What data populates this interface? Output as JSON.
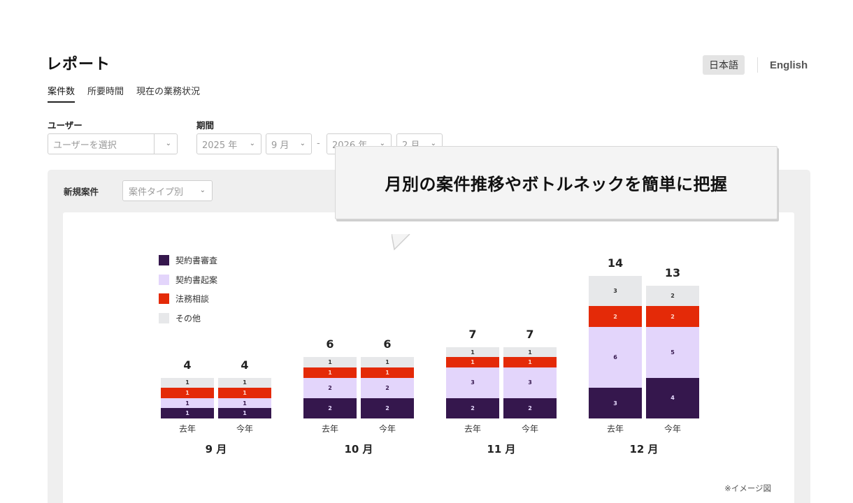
{
  "page": {
    "title": "レポート"
  },
  "language": {
    "options": [
      "日本語",
      "English"
    ],
    "active": "日本語"
  },
  "tabs": [
    {
      "label": "案件数",
      "active": true
    },
    {
      "label": "所要時間",
      "active": false
    },
    {
      "label": "現在の業務状況",
      "active": false
    }
  ],
  "filters": {
    "user": {
      "label": "ユーザー",
      "placeholder": "ユーザーを選択"
    },
    "period": {
      "label": "期間",
      "start_year": "2025 年",
      "start_month": "9 月",
      "separator": "-",
      "end_year": "2026 年",
      "end_month": "2 月"
    }
  },
  "panel": {
    "label": "新規案件",
    "group_by": "案件タイプ別",
    "note": "※イメージ図"
  },
  "callout": {
    "text": "月別の案件推移やボトルネックを簡単に把握"
  },
  "icons": {
    "caret": "chevron-down-icon"
  },
  "colors": {
    "review": "#35174d",
    "drafting": "#e3d5fb",
    "legal_consult": "#e42a08",
    "other": "#e7e8ea"
  },
  "chart_data": {
    "type": "bar",
    "stacked": true,
    "title": "新規案件（案件タイプ別）",
    "categories": [
      "9 月",
      "10 月",
      "11 月",
      "12 月"
    ],
    "sub_categories": [
      "去年",
      "今年"
    ],
    "legend": [
      "契約書審査",
      "契約書起案",
      "法務相談",
      "その他"
    ],
    "legend_position": "top-left",
    "grid": false,
    "series": [
      {
        "name": "契約書審査",
        "color": "#35174d",
        "values": {
          "去年": [
            1,
            2,
            2,
            3
          ],
          "今年": [
            1,
            2,
            2,
            4
          ]
        }
      },
      {
        "name": "契約書起案",
        "color": "#e3d5fb",
        "values": {
          "去年": [
            1,
            2,
            3,
            6
          ],
          "今年": [
            1,
            2,
            3,
            5
          ]
        }
      },
      {
        "name": "法務相談",
        "color": "#e42a08",
        "values": {
          "去年": [
            1,
            1,
            1,
            2
          ],
          "今年": [
            1,
            1,
            1,
            2
          ]
        }
      },
      {
        "name": "その他",
        "color": "#e7e8ea",
        "values": {
          "去年": [
            1,
            1,
            1,
            3
          ],
          "今年": [
            1,
            1,
            1,
            2
          ]
        }
      }
    ],
    "totals": {
      "去年": [
        4,
        6,
        7,
        14
      ],
      "今年": [
        4,
        6,
        7,
        13
      ]
    }
  }
}
